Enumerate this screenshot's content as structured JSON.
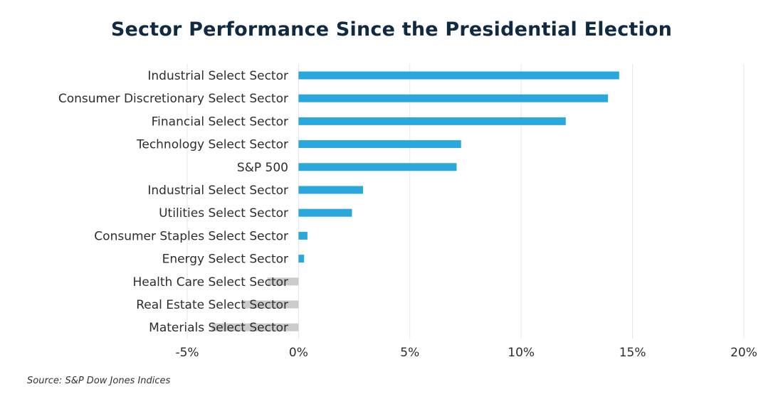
{
  "chart_data": {
    "type": "bar",
    "orientation": "horizontal",
    "title": "Sector Performance Since the Presidential Election",
    "categories": [
      "Industrial Select Sector",
      "Consumer Discretionary Select Sector",
      "Financial Select Sector",
      "Technology Select Sector",
      "S&P 500",
      "Industrial Select Sector",
      "Utilities Select Sector",
      "Consumer Staples Select Sector",
      "Energy Select Sector",
      "Health Care Select Sector",
      "Real Estate Select Sector",
      "Materials Select Sector"
    ],
    "values": [
      14.4,
      13.9,
      12.0,
      7.3,
      7.1,
      2.9,
      2.4,
      0.4,
      0.25,
      -1.4,
      -2.5,
      -3.9
    ],
    "xlim": [
      -5,
      20
    ],
    "xticks": [
      -5,
      0,
      5,
      10,
      15,
      20
    ],
    "xtick_labels": [
      "-5%",
      "0%",
      "5%",
      "10%",
      "15%",
      "20%"
    ],
    "xlabel": "",
    "ylabel": "",
    "grid": true,
    "colors": {
      "positive": "#2aa8de",
      "negative": "#cccccc",
      "grid": "#e6e6e6"
    }
  },
  "source": "Source: S&P Dow Jones Indices"
}
